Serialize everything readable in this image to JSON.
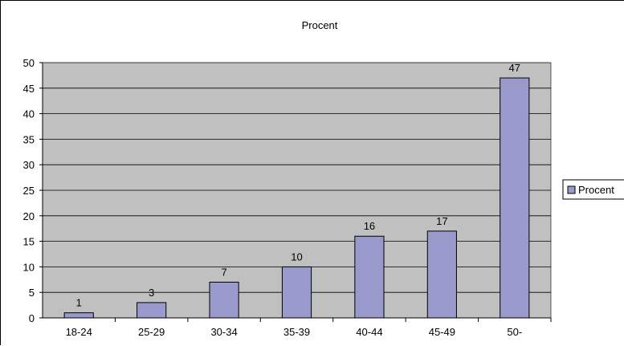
{
  "chart_data": {
    "type": "bar",
    "title": "Procent",
    "categories": [
      "18-24",
      "25-29",
      "30-34",
      "35-39",
      "40-44",
      "45-49",
      "50-"
    ],
    "series": [
      {
        "name": "Procent",
        "values": [
          1,
          3,
          7,
          10,
          16,
          17,
          47
        ]
      }
    ],
    "xlabel": "",
    "ylabel": "",
    "ylim": [
      0,
      50
    ],
    "y_ticks": [
      "0",
      "5",
      "10",
      "15",
      "20",
      "25",
      "30",
      "35",
      "40",
      "45",
      "50"
    ],
    "data_labels": true,
    "grid": true,
    "legend_position": "right"
  },
  "colors": {
    "plot_background": "#c0c0c0",
    "bar_fill": "#9999cc",
    "bar_stroke": "#000000",
    "gridline": "#000000"
  }
}
